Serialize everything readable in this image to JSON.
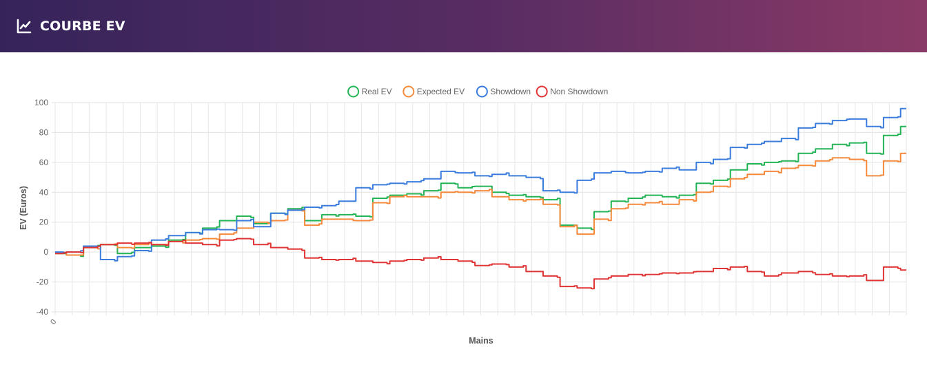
{
  "header": {
    "title": "COURBE EV",
    "icon": "line-chart-icon"
  },
  "chart_data": {
    "type": "line",
    "title": "",
    "xlabel": "Mains",
    "ylabel": "EV (Euros)",
    "ylim": [
      -40,
      100
    ],
    "yticks": [
      100,
      80,
      60,
      40,
      20,
      0,
      -20,
      -40
    ],
    "xticks": [
      "0"
    ],
    "grid": true,
    "legend_position": "top",
    "x": [
      0,
      1,
      2,
      3,
      4,
      5,
      6,
      7,
      8,
      9,
      10,
      11,
      12,
      13,
      14,
      15,
      16,
      17,
      18,
      19,
      20,
      21,
      22,
      23,
      24,
      25,
      26,
      27,
      28,
      29,
      30,
      31,
      32,
      33,
      34,
      35,
      36,
      37,
      38,
      39,
      40,
      41,
      42,
      43,
      44,
      45,
      46,
      47,
      48,
      49,
      50
    ],
    "series": [
      {
        "name": "Real EV",
        "color": "#22b455",
        "values": [
          -1,
          -2,
          4,
          5,
          -1,
          3,
          4,
          8,
          13,
          16,
          21,
          24,
          19,
          26,
          29,
          21,
          25,
          25,
          24,
          36,
          38,
          39,
          41,
          46,
          43,
          44,
          40,
          38,
          37,
          35,
          18,
          16,
          27,
          34,
          36,
          38,
          37,
          38,
          46,
          48,
          55,
          59,
          60,
          61,
          66,
          69,
          72,
          73,
          66,
          78,
          84
        ]
      },
      {
        "name": "Expected EV",
        "color": "#f58a3c",
        "values": [
          -1,
          -2,
          3,
          5,
          3,
          5,
          5,
          7,
          8,
          9,
          12,
          16,
          20,
          21,
          28,
          18,
          22,
          22,
          21,
          33,
          37,
          37,
          37,
          40,
          40,
          41,
          37,
          35,
          35,
          32,
          17,
          12,
          22,
          29,
          32,
          33,
          32,
          35,
          40,
          44,
          49,
          52,
          54,
          56,
          58,
          61,
          63,
          62,
          51,
          61,
          66
        ]
      },
      {
        "name": "Showdown",
        "color": "#3b7ddd",
        "values": [
          0,
          0,
          4,
          -5,
          -3,
          1,
          8,
          11,
          13,
          15,
          15,
          21,
          17,
          26,
          28,
          30,
          31,
          34,
          43,
          45,
          46,
          47,
          49,
          54,
          53,
          51,
          52,
          51,
          50,
          41,
          40,
          48,
          53,
          54,
          53,
          54,
          56,
          55,
          60,
          62,
          70,
          72,
          74,
          76,
          83,
          86,
          88,
          89,
          84,
          90,
          96
        ]
      },
      {
        "name": "Non Showdown",
        "color": "#e03535",
        "values": [
          -1,
          0,
          3,
          5,
          6,
          6,
          5,
          7,
          6,
          5,
          8,
          9,
          5,
          3,
          2,
          -4,
          -5,
          -5,
          -6,
          -7,
          -6,
          -5,
          -4,
          -5,
          -6,
          -9,
          -8,
          -10,
          -13,
          -16,
          -23,
          -24,
          -18,
          -16,
          -15,
          -15,
          -14,
          -14,
          -13,
          -11,
          -10,
          -13,
          -16,
          -14,
          -13,
          -15,
          -16,
          -16,
          -19,
          -10,
          -12
        ]
      }
    ]
  }
}
